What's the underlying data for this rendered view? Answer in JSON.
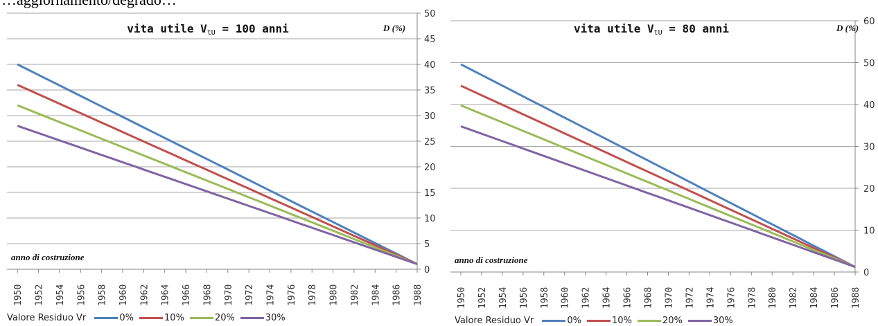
{
  "caption": "…aggiornamento/degrado…",
  "chart_data": [
    {
      "type": "line",
      "title": "vita utile V",
      "title_sub": "tU",
      "title_suffix": " = 100 anni",
      "ylabel": "D (%)",
      "xlabel": "anno di costruzione",
      "x": [
        1950,
        1951,
        1952,
        1953,
        1954,
        1955,
        1956,
        1957,
        1958,
        1959,
        1960,
        1961,
        1962,
        1963,
        1964,
        1965,
        1966,
        1967,
        1968,
        1969,
        1970,
        1971,
        1972,
        1973,
        1974,
        1975,
        1976,
        1977,
        1978,
        1979,
        1980,
        1981,
        1982,
        1983,
        1984,
        1985,
        1986,
        1987,
        1988
      ],
      "x_ticks": [
        "1950",
        "1952",
        "1954",
        "1956",
        "1958",
        "1960",
        "1962",
        "1964",
        "1966",
        "1968",
        "1970",
        "1972",
        "1974",
        "1976",
        "1978",
        "1980",
        "1982",
        "1984",
        "1986",
        "1988"
      ],
      "ylim": [
        0,
        50
      ],
      "y_ticks": [
        "0",
        "5",
        "10",
        "15",
        "20",
        "25",
        "30",
        "35",
        "40",
        "45",
        "50"
      ],
      "y_axis_side": "right",
      "grid": true,
      "legend_title": "Valore Residuo Vr",
      "legend_position": "bottom",
      "series": [
        {
          "name": "0%",
          "color": "#4f81bd",
          "start": 40,
          "end": 1
        },
        {
          "name": "10%",
          "color": "#c0504d",
          "start": 36,
          "end": 1
        },
        {
          "name": "20%",
          "color": "#9bbb59",
          "start": 32,
          "end": 1
        },
        {
          "name": "30%",
          "color": "#8064a2",
          "start": 28,
          "end": 1
        }
      ]
    },
    {
      "type": "line",
      "title": "vita utile V",
      "title_sub": "tU",
      "title_suffix": " = 80 anni",
      "ylabel": "D (%)",
      "xlabel": "anno di costruzione",
      "x": [
        1950,
        1951,
        1952,
        1953,
        1954,
        1955,
        1956,
        1957,
        1958,
        1959,
        1960,
        1961,
        1962,
        1963,
        1964,
        1965,
        1966,
        1967,
        1968,
        1969,
        1970,
        1971,
        1972,
        1973,
        1974,
        1975,
        1976,
        1977,
        1978,
        1979,
        1980,
        1981,
        1982,
        1983,
        1984,
        1985,
        1986,
        1987,
        1988
      ],
      "x_ticks": [
        "1950",
        "1952",
        "1954",
        "1956",
        "1958",
        "1960",
        "1962",
        "1964",
        "1966",
        "1968",
        "1970",
        "1972",
        "1974",
        "1976",
        "1978",
        "1980",
        "1982",
        "1984",
        "1986",
        "1988"
      ],
      "ylim": [
        0,
        60
      ],
      "y_ticks": [
        "0",
        "10",
        "20",
        "30",
        "40",
        "50",
        "60"
      ],
      "y_axis_side": "right",
      "grid": true,
      "legend_title": "Valore Residuo Vr",
      "legend_position": "bottom",
      "series": [
        {
          "name": "0%",
          "color": "#4f81bd",
          "start": 49.6,
          "end": 1.2
        },
        {
          "name": "10%",
          "color": "#c0504d",
          "start": 44.5,
          "end": 1.2
        },
        {
          "name": "20%",
          "color": "#9bbb59",
          "start": 39.8,
          "end": 1.2
        },
        {
          "name": "30%",
          "color": "#8064a2",
          "start": 34.8,
          "end": 1.2
        }
      ]
    }
  ]
}
